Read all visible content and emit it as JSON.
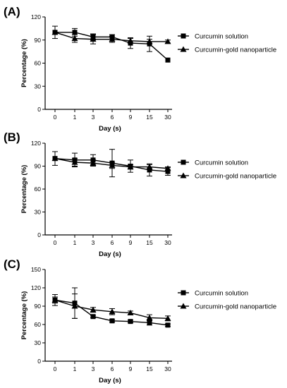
{
  "chart_data": [
    {
      "type": "line",
      "panel_label": "(A)",
      "categories": [
        "0",
        "1",
        "3",
        "6",
        "9",
        "15",
        "30"
      ],
      "xlabel": "Day (s)",
      "ylabel": "Percentage (%)",
      "ylim": [
        0,
        120
      ],
      "yticks": [
        "0",
        "30",
        "60",
        "90",
        "120"
      ],
      "grid": false,
      "legend_position": "right",
      "series": [
        {
          "name": "Curcumin solution",
          "marker": "square",
          "values": [
            100,
            100,
            94,
            94,
            86,
            85,
            64
          ],
          "errors": [
            8,
            5,
            4,
            3,
            7,
            10,
            0
          ]
        },
        {
          "name": "Curcumin-gold nanoparticle",
          "marker": "triangle",
          "values": [
            100,
            92,
            91,
            91,
            89,
            88,
            88
          ],
          "errors": [
            0,
            5,
            6,
            4,
            3,
            3,
            2
          ]
        }
      ]
    },
    {
      "type": "line",
      "panel_label": "(B)",
      "categories": [
        "0",
        "1",
        "3",
        "6",
        "9",
        "15",
        "30"
      ],
      "xlabel": "Day (s)",
      "ylabel": "Percentage (%)",
      "ylim": [
        0,
        120
      ],
      "yticks": [
        "0",
        "30",
        "60",
        "90",
        "120"
      ],
      "grid": false,
      "legend_position": "right",
      "series": [
        {
          "name": "Curcumin solution",
          "marker": "square",
          "values": [
            100,
            98,
            98,
            94,
            90,
            85,
            83
          ],
          "errors": [
            9,
            9,
            7,
            18,
            8,
            8,
            5
          ]
        },
        {
          "name": "Curcumin-gold nanoparticle",
          "marker": "triangle",
          "values": [
            100,
            95,
            94,
            91,
            89,
            89,
            87
          ],
          "errors": [
            0,
            5,
            4,
            4,
            3,
            3,
            2
          ]
        }
      ]
    },
    {
      "type": "line",
      "panel_label": "(C)",
      "categories": [
        "0",
        "1",
        "3",
        "6",
        "9",
        "15",
        "30"
      ],
      "xlabel": "Day (s)",
      "ylabel": "Percentage (%)",
      "ylim": [
        0,
        150
      ],
      "yticks": [
        "0",
        "30",
        "60",
        "90",
        "120",
        "150"
      ],
      "grid": false,
      "legend_position": "right",
      "series": [
        {
          "name": "Curcumin solution",
          "marker": "square",
          "values": [
            100,
            95,
            73,
            66,
            65,
            63,
            59
          ],
          "errors": [
            9,
            25,
            2,
            2,
            2,
            4,
            2
          ]
        },
        {
          "name": "Curcumin-gold nanoparticle",
          "marker": "triangle",
          "values": [
            100,
            90,
            84,
            81,
            79,
            71,
            70
          ],
          "errors": [
            5,
            20,
            4,
            5,
            3,
            5,
            4
          ]
        }
      ]
    }
  ]
}
